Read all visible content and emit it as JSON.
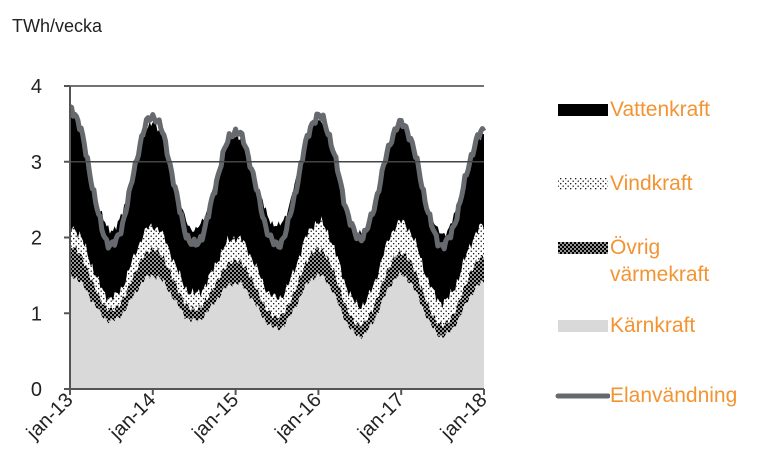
{
  "chart_data": {
    "type": "area",
    "title": "",
    "ylabel": "TWh/vecka",
    "xlabel": "",
    "ylim": [
      0,
      4
    ],
    "yticks": [
      0,
      1,
      2,
      3,
      4
    ],
    "grid": "horizontal at 3 and 4",
    "stacked": true,
    "x_ticks": [
      "jan-13",
      "jan-14",
      "jan-15",
      "jan-16",
      "jan-17",
      "jan-18"
    ],
    "x": [
      "jan-13",
      "jul-13",
      "jan-14",
      "jul-14",
      "jan-15",
      "jul-15",
      "jan-16",
      "jul-16",
      "jan-17",
      "jul-17",
      "jan-18"
    ],
    "series": [
      {
        "name": "Kärnkraft",
        "fill": "#d9d9d9",
        "values": [
          1.5,
          0.9,
          1.5,
          0.9,
          1.4,
          0.8,
          1.5,
          0.7,
          1.5,
          0.7,
          1.4
        ]
      },
      {
        "name": "Övrig värmekraft",
        "fill": "dotted-black",
        "values": [
          0.4,
          0.15,
          0.35,
          0.15,
          0.3,
          0.15,
          0.35,
          0.15,
          0.3,
          0.15,
          0.35
        ]
      },
      {
        "name": "Vindkraft",
        "fill": "dotted-white",
        "values": [
          0.25,
          0.15,
          0.3,
          0.2,
          0.3,
          0.25,
          0.35,
          0.25,
          0.4,
          0.3,
          0.4
        ]
      },
      {
        "name": "Vattenkraft",
        "fill": "#000000",
        "values": [
          1.5,
          0.9,
          1.35,
          0.85,
          1.35,
          0.95,
          1.35,
          0.95,
          1.3,
          0.9,
          1.2
        ]
      },
      {
        "name": "Elanvändning",
        "type": "line",
        "color": "#666a6e",
        "values": [
          3.7,
          1.9,
          3.6,
          1.9,
          3.4,
          1.9,
          3.6,
          2.0,
          3.5,
          1.9,
          3.4
        ]
      }
    ]
  },
  "legend": {
    "items": [
      {
        "label": "Vattenkraft"
      },
      {
        "label": "Vindkraft"
      },
      {
        "label": "Övrig värmekraft"
      },
      {
        "label": "Kärnkraft"
      },
      {
        "label": "Elanvändning"
      }
    ]
  },
  "colors": {
    "label_orange": "#f39433",
    "line_gray": "#666a6e",
    "axis": "#555555"
  }
}
